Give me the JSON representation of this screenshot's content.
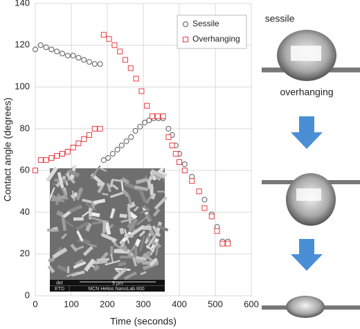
{
  "chart_data": {
    "type": "scatter",
    "x_label": "Time (seconds)",
    "y_label": "Contact angle (degrees)",
    "xlim": [
      0,
      600
    ],
    "xticks": [
      0,
      100,
      200,
      300,
      400,
      500,
      600
    ],
    "ylim": [
      0,
      140
    ],
    "yticks": [
      0,
      20,
      40,
      60,
      80,
      100,
      120,
      140
    ],
    "grid": true,
    "legend": "upper right",
    "series": [
      {
        "name": "Sessile",
        "color": "#595959",
        "marker": "circle",
        "x": [
          0,
          15,
          30,
          45,
          60,
          75,
          90,
          105,
          120,
          135,
          150,
          165,
          180,
          190,
          202,
          215,
          228,
          240,
          253,
          266,
          278,
          291,
          304,
          316,
          329,
          342,
          355,
          370,
          380,
          390,
          400,
          415,
          435,
          455,
          470,
          490,
          505,
          520,
          535
        ],
        "values": [
          118,
          120,
          119,
          118,
          117,
          116,
          115,
          115,
          114,
          113,
          112,
          111,
          111,
          65,
          66,
          68,
          70,
          72,
          74,
          76,
          79,
          81,
          83,
          84,
          85,
          85,
          85,
          80,
          77,
          72,
          68,
          63,
          57,
          50,
          46,
          39,
          33,
          26,
          26
        ]
      },
      {
        "name": "Overhanging",
        "color": "#e8383d",
        "marker": "square",
        "x": [
          0,
          15,
          30,
          45,
          60,
          75,
          90,
          105,
          120,
          135,
          150,
          165,
          180,
          190,
          205,
          220,
          235,
          250,
          265,
          280,
          295,
          310,
          325,
          340,
          355,
          370,
          380,
          390,
          400,
          415,
          435,
          455,
          470,
          490,
          505,
          520,
          535
        ],
        "values": [
          60,
          65,
          65,
          66,
          67,
          68,
          69,
          71,
          73,
          75,
          77,
          80,
          80,
          125,
          123,
          120,
          117,
          113,
          109,
          104,
          98,
          91,
          86,
          86,
          86,
          76,
          72,
          68,
          64,
          60,
          55,
          50,
          42,
          38,
          31,
          25,
          25
        ]
      }
    ]
  },
  "inset": {
    "detector_label": "det",
    "detector": "ETD",
    "scale": "5 μm",
    "instrument": "MCN Helios NanoLab 600"
  },
  "photos": {
    "top_label": "sessile",
    "bottom_label": "overhanging"
  }
}
